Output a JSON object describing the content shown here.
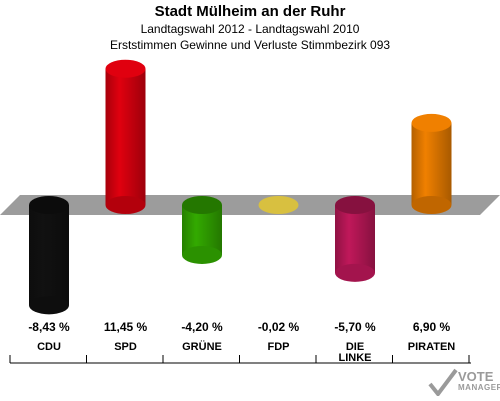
{
  "header": {
    "title": "Stadt Mülheim an der Ruhr",
    "subtitle": "Landtagswahl 2012 - Landtagswahl 2010",
    "description": "Erststimmen Gewinne und Verluste Stimmbezirk 093"
  },
  "chart_data": {
    "type": "bar",
    "categories": [
      "CDU",
      "SPD",
      "GRÜNE",
      "FDP",
      "DIE LINKE",
      "PIRATEN"
    ],
    "values": [
      -8.43,
      11.45,
      -4.2,
      -0.02,
      -5.7,
      6.9
    ],
    "value_labels": [
      "-8,43 %",
      "11,45 %",
      "-4,20 %",
      "-0,02 %",
      "-5,70 %",
      "6,90 %"
    ],
    "colors": [
      "#111111",
      "#e0000f",
      "#33aa00",
      "#d8c040",
      "#c0185a",
      "#f08000"
    ],
    "ylim": [
      -10,
      13
    ],
    "grid": false,
    "legend": "none"
  },
  "logo": {
    "line1": "VOTE",
    "line2": "MANAGER"
  }
}
